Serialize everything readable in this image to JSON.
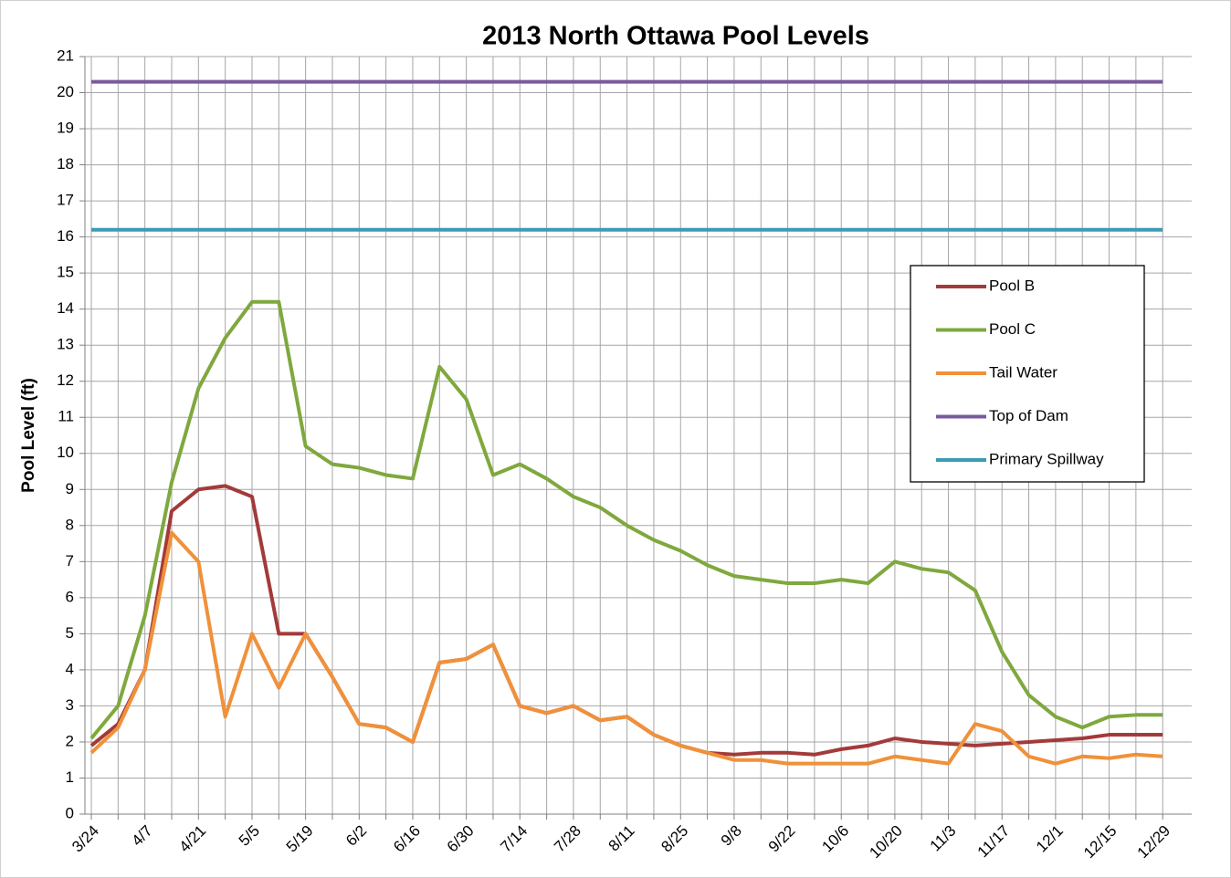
{
  "chart_data": {
    "type": "line",
    "title": "2013 North Ottawa Pool Levels",
    "y_label": "Pool Level (ft)",
    "categories": [
      "3/24",
      null,
      "4/7",
      null,
      "4/21",
      null,
      "5/5",
      null,
      "5/19",
      null,
      "6/2",
      null,
      "6/16",
      null,
      "6/30",
      null,
      "7/14",
      null,
      "7/28",
      null,
      "8/11",
      null,
      "8/25",
      null,
      "9/8",
      null,
      "9/22",
      null,
      "10/6",
      null,
      "10/20",
      null,
      "11/3",
      null,
      "11/17",
      null,
      "12/1",
      null,
      "12/15",
      null,
      "12/29"
    ],
    "series": [
      {
        "name": "Pool B",
        "color": "#a33a3a",
        "values": [
          1.9,
          2.5,
          4,
          8.4,
          9.0,
          9.1,
          8.8,
          5.0,
          5.0,
          3.8,
          2.5,
          2.4,
          2.0,
          4.2,
          4.3,
          4.7,
          3.0,
          2.8,
          3.0,
          2.6,
          2.7,
          2.2,
          1.9,
          1.7,
          1.65,
          1.7,
          1.7,
          1.65,
          1.8,
          1.9,
          2.1,
          2.0,
          1.95,
          1.9,
          1.95,
          2.0,
          2.05,
          2.1,
          2.2,
          2.2,
          2.2
        ]
      },
      {
        "name": "Pool C",
        "color": "#7fa83e",
        "values": [
          2.1,
          3.0,
          5.5,
          9.2,
          11.8,
          13.2,
          14.2,
          14.2,
          10.2,
          9.7,
          9.6,
          9.4,
          9.3,
          12.4,
          11.5,
          9.4,
          9.7,
          9.3,
          8.8,
          8.5,
          8.0,
          7.6,
          7.3,
          6.9,
          6.6,
          6.5,
          6.4,
          6.4,
          6.5,
          6.4,
          7.0,
          6.8,
          6.7,
          6.2,
          4.5,
          3.3,
          2.7,
          2.4,
          2.7,
          2.75,
          2.75
        ]
      },
      {
        "name": "Tail Water",
        "color": "#f0913a",
        "values": [
          1.7,
          2.4,
          4,
          7.8,
          7.0,
          2.7,
          5.0,
          3.5,
          5.0,
          3.8,
          2.5,
          2.4,
          2.0,
          4.2,
          4.3,
          4.7,
          3.0,
          2.8,
          3.0,
          2.6,
          2.7,
          2.2,
          1.9,
          1.7,
          1.5,
          1.5,
          1.4,
          1.4,
          1.4,
          1.4,
          1.6,
          1.5,
          1.4,
          2.5,
          2.3,
          1.6,
          1.4,
          1.6,
          1.55,
          1.65,
          1.6
        ]
      },
      {
        "name": "Top of Dam",
        "color": "#7a5a9e",
        "values": [
          20.3,
          20.3,
          20.3,
          20.3,
          20.3,
          20.3,
          20.3,
          20.3,
          20.3,
          20.3,
          20.3,
          20.3,
          20.3,
          20.3,
          20.3,
          20.3,
          20.3,
          20.3,
          20.3,
          20.3,
          20.3,
          20.3,
          20.3,
          20.3,
          20.3,
          20.3,
          20.3,
          20.3,
          20.3,
          20.3,
          20.3,
          20.3,
          20.3,
          20.3,
          20.3,
          20.3,
          20.3,
          20.3,
          20.3,
          20.3,
          20.3
        ]
      },
      {
        "name": "Primary Spillway",
        "color": "#3b9bb3",
        "values": [
          16.2,
          16.2,
          16.2,
          16.2,
          16.2,
          16.2,
          16.2,
          16.2,
          16.2,
          16.2,
          16.2,
          16.2,
          16.2,
          16.2,
          16.2,
          16.2,
          16.2,
          16.2,
          16.2,
          16.2,
          16.2,
          16.2,
          16.2,
          16.2,
          16.2,
          16.2,
          16.2,
          16.2,
          16.2,
          16.2,
          16.2,
          16.2,
          16.2,
          16.2,
          16.2,
          16.2,
          16.2,
          16.2,
          16.2,
          16.2,
          16.2
        ]
      }
    ],
    "ylim": [
      0,
      21
    ],
    "yticks": [
      0,
      1,
      2,
      3,
      4,
      5,
      6,
      7,
      8,
      9,
      10,
      11,
      12,
      13,
      14,
      15,
      16,
      17,
      18,
      19,
      20,
      21
    ],
    "grid": true,
    "legend": "right"
  }
}
